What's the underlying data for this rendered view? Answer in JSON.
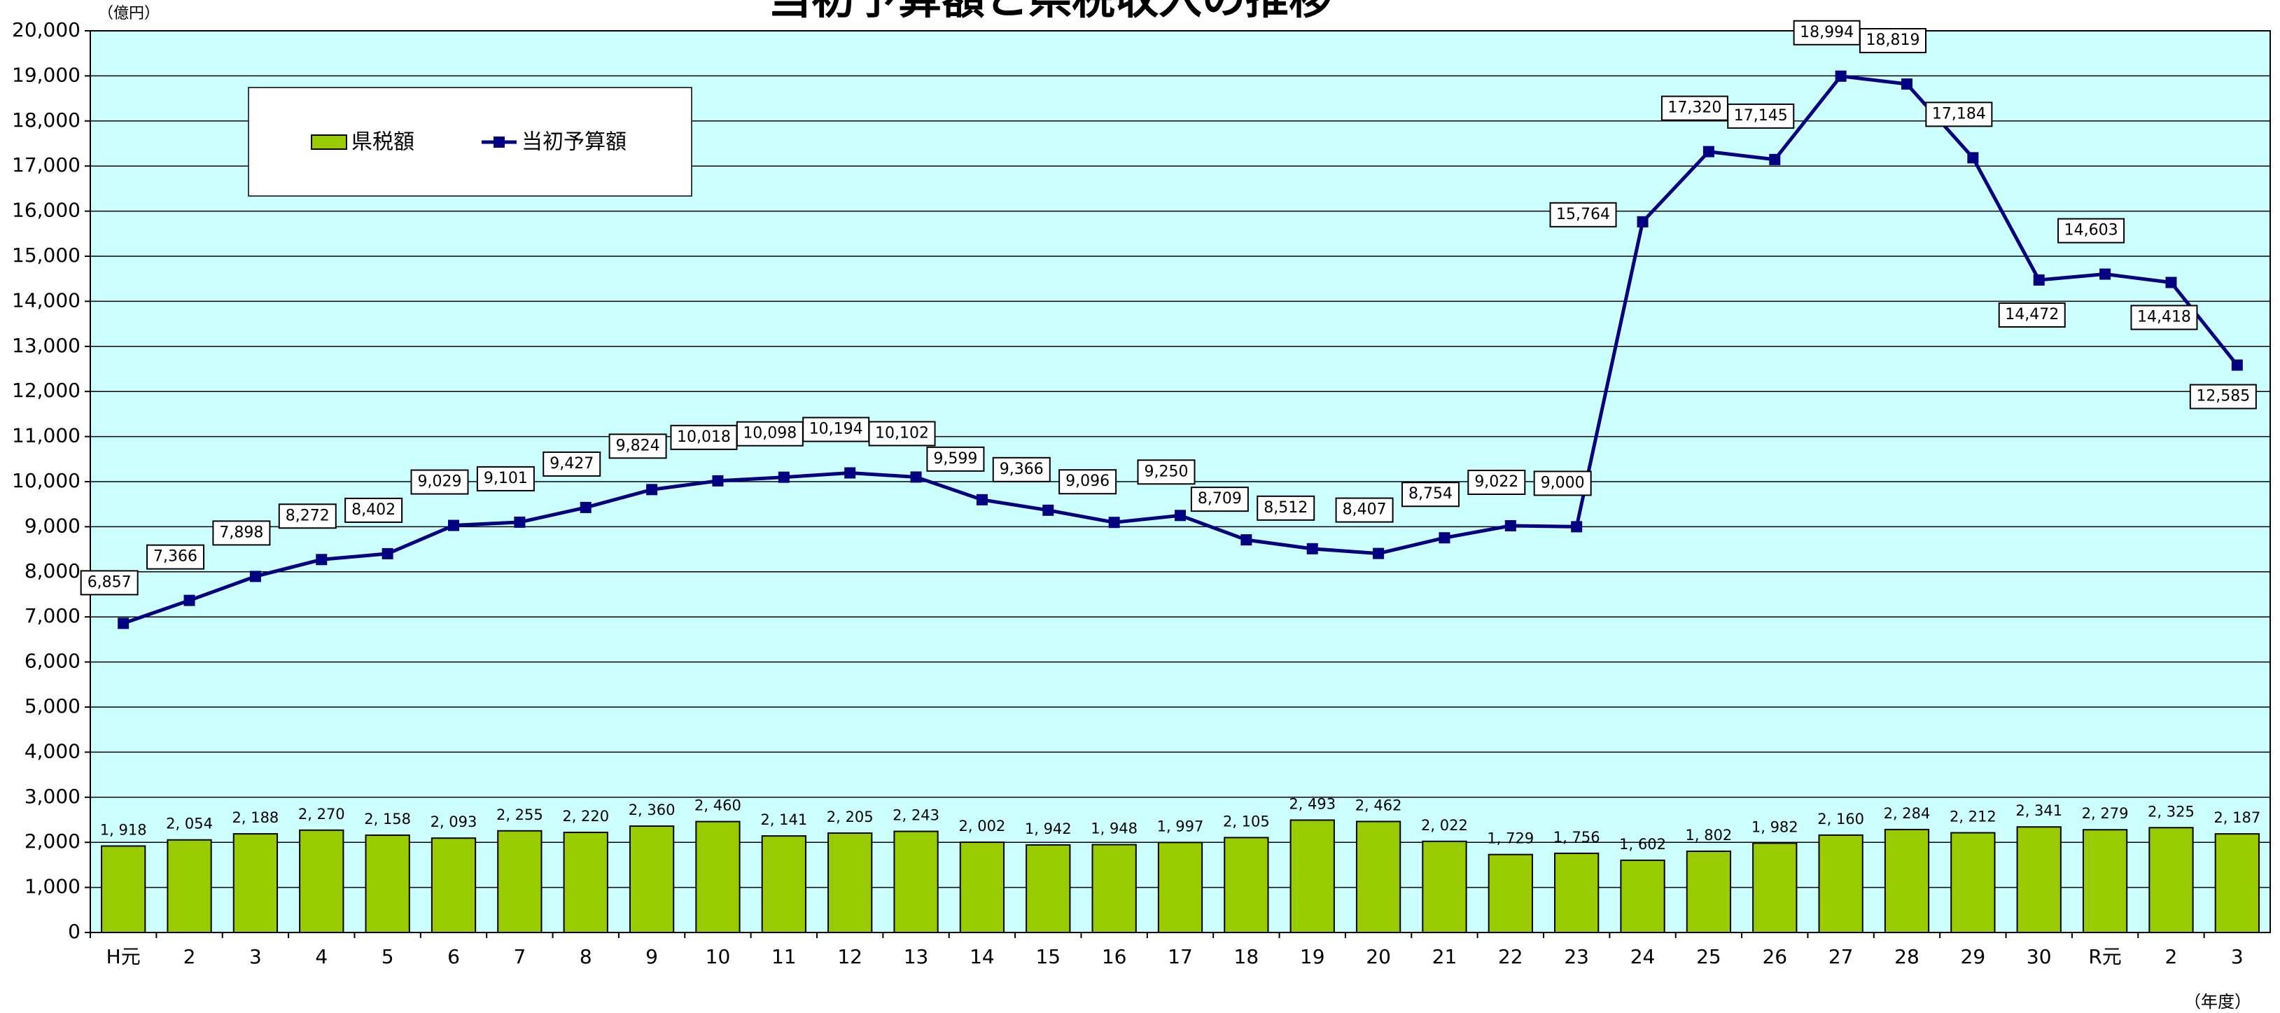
{
  "chart_data": {
    "type": "bar-line",
    "title": "当初予算額と県税収入の推移",
    "y_unit": "（億円）",
    "x_unit": "（年度）",
    "categories": [
      "H元",
      "2",
      "3",
      "4",
      "5",
      "6",
      "7",
      "8",
      "9",
      "10",
      "11",
      "12",
      "13",
      "14",
      "15",
      "16",
      "17",
      "18",
      "19",
      "20",
      "21",
      "22",
      "23",
      "24",
      "25",
      "26",
      "27",
      "28",
      "29",
      "30",
      "R元",
      "2",
      "3"
    ],
    "series": [
      {
        "name": "県税額",
        "type": "bar",
        "color": "#99cc00",
        "values": [
          1918,
          2054,
          2188,
          2270,
          2158,
          2093,
          2255,
          2220,
          2360,
          2460,
          2141,
          2205,
          2243,
          2002,
          1942,
          1948,
          1997,
          2105,
          2493,
          2462,
          2022,
          1729,
          1756,
          1602,
          1802,
          1982,
          2160,
          2284,
          2212,
          2341,
          2279,
          2325,
          2187
        ],
        "value_labels": [
          "1, 918",
          "2, 054",
          "2, 188",
          "2, 270",
          "2, 158",
          "2, 093",
          "2, 255",
          "2, 220",
          "2, 360",
          "2, 460",
          "2, 141",
          "2, 205",
          "2, 243",
          "2, 002",
          "1, 942",
          "1, 948",
          "1, 997",
          "2, 105",
          "2, 493",
          "2, 462",
          "2, 022",
          "1, 729",
          "1, 756",
          "1, 602",
          "1, 802",
          "1, 982",
          "2, 160",
          "2, 284",
          "2, 212",
          "2, 341",
          "2, 279",
          "2, 325",
          "2, 187"
        ]
      },
      {
        "name": "当初予算額",
        "type": "line",
        "color": "#000080",
        "values": [
          6857,
          7366,
          7898,
          8272,
          8402,
          9029,
          9101,
          9427,
          9824,
          10018,
          10098,
          10194,
          10102,
          9599,
          9366,
          9096,
          9250,
          8709,
          8512,
          8407,
          8754,
          9022,
          9000,
          15764,
          17320,
          17145,
          18994,
          18819,
          17184,
          14472,
          14603,
          14418,
          12585
        ],
        "value_labels": [
          "6,857",
          "7,366",
          "7,898",
          "8,272",
          "8,402",
          "9,029",
          "9,101",
          "9,427",
          "9,824",
          "10,018",
          "10,098",
          "10,194",
          "10,102",
          "9,599",
          "9,366",
          "9,096",
          "9,250",
          "8,709",
          "8,512",
          "8,407",
          "8,754",
          "9,022",
          "9,000",
          "15,764",
          "17,320",
          "17,145",
          "18,994",
          "18,819",
          "17,184",
          "14,472",
          "14,603",
          "14,418",
          "12,585"
        ]
      }
    ],
    "ylim": [
      0,
      20000
    ],
    "yticks": [
      0,
      {
        "value": 1000,
        "label": "1,000"
      },
      {
        "value": 2000,
        "label": "2,000"
      },
      {
        "value": 3000,
        "label": "3,000"
      },
      {
        "value": 4000,
        "label": "4,000"
      },
      {
        "value": 5000,
        "label": "5,000"
      },
      {
        "value": 6000,
        "label": "6,000"
      },
      {
        "value": 7000,
        "label": "7,000"
      },
      {
        "value": 8000,
        "label": "8,000"
      },
      {
        "value": 9000,
        "label": "9,000"
      },
      {
        "value": 10000,
        "label": "10,000"
      },
      {
        "value": 11000,
        "label": "11,000"
      },
      {
        "value": 12000,
        "label": "12,000"
      },
      {
        "value": 13000,
        "label": "13,000"
      },
      {
        "value": 14000,
        "label": "14,000"
      },
      {
        "value": 15000,
        "label": "15,000"
      },
      {
        "value": 16000,
        "label": "16,000"
      },
      {
        "value": 17000,
        "label": "17,000"
      },
      {
        "value": 18000,
        "label": "18,000"
      },
      {
        "value": 19000,
        "label": "19,000"
      },
      {
        "value": 20000,
        "label": "20,000"
      }
    ],
    "grid": true,
    "legend": "top-left",
    "background": "#ccffff"
  }
}
